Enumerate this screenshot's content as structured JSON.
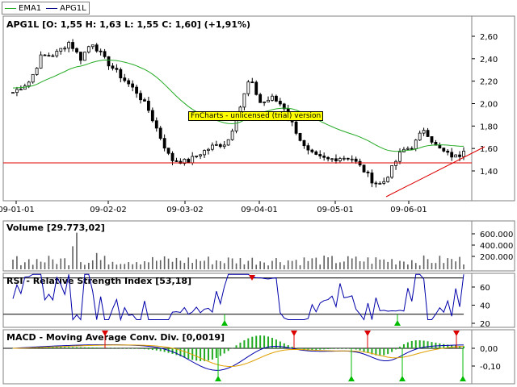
{
  "legend": {
    "items": [
      {
        "label": "EMA1",
        "color": "#22aa22"
      },
      {
        "label": "APG1L",
        "color": "#000080"
      }
    ]
  },
  "watermark": "FnCharts - unlicensed (trial) version",
  "price_panel": {
    "title": "APG1L [O: 1,55  H: 1,63  L: 1,55  C: 1,60] (+1,91%)",
    "yticks": [
      "2,60",
      "2,40",
      "2,20",
      "2,00",
      "1,80",
      "1,60",
      "1,40"
    ],
    "xticks": [
      "09-01-01",
      "09-02-02",
      "09-03-02",
      "09-04-01",
      "09-05-01",
      "09-06-01"
    ]
  },
  "volume_panel": {
    "title": "Volume [29.773,02]",
    "yticks": [
      "600.000",
      "400.000",
      "200.000"
    ]
  },
  "rsi_panel": {
    "title": "RSI - Relative Strength Index [53,18]",
    "yticks": [
      "60",
      "40",
      "20"
    ]
  },
  "macd_panel": {
    "title": "MACD - Moving Average Conv. Div. [0,0019]",
    "yticks": [
      "0,00",
      "-0,10"
    ]
  },
  "colors": {
    "ema": "#22aa22",
    "rsi": "#0000aa",
    "macd_line": "#0000aa",
    "macd_signal": "#e0a000",
    "histogram": "#22aa22",
    "support_line": "#dd0000",
    "trend_line": "#dd0000",
    "arrow_up": "#00bb00",
    "arrow_down": "#dd0000"
  }
}
